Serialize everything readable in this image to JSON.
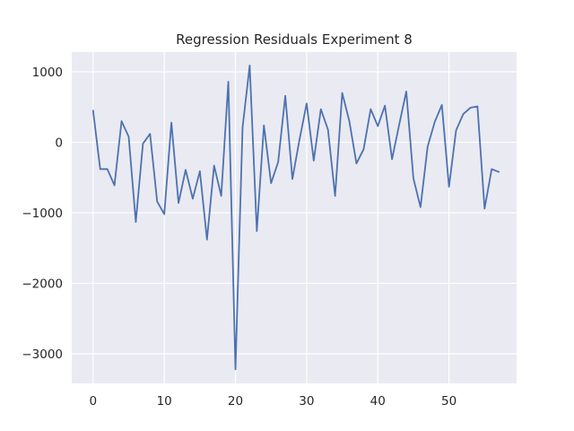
{
  "chart_data": {
    "type": "line",
    "title": "Regression Residuals Experiment 8",
    "xlabel": "",
    "ylabel": "",
    "xlim": [
      -3,
      59.5
    ],
    "ylim": [
      -3420,
      1280
    ],
    "xticks": [
      0,
      10,
      20,
      30,
      40,
      50
    ],
    "yticks": [
      -3000,
      -2000,
      -1000,
      0,
      1000
    ],
    "ytick_labels": [
      "−3000",
      "−2000",
      "−1000",
      "0",
      "1000"
    ],
    "grid": true,
    "background": "#eaeaf2",
    "series": [
      {
        "color": "#4c72b0",
        "x": [
          0,
          1,
          2,
          3,
          4,
          5,
          6,
          7,
          8,
          9,
          10,
          11,
          12,
          13,
          14,
          15,
          16,
          17,
          18,
          19,
          20,
          21,
          22,
          23,
          24,
          25,
          26,
          27,
          28,
          29,
          30,
          31,
          32,
          33,
          34,
          35,
          36,
          37,
          38,
          39,
          40,
          41,
          42,
          43,
          44,
          45,
          46,
          47,
          48,
          49,
          50,
          51,
          52,
          53,
          54,
          55,
          56,
          57
        ],
        "values": [
          450,
          -380,
          -380,
          -610,
          300,
          80,
          -1130,
          -20,
          120,
          -840,
          -1020,
          280,
          -860,
          -390,
          -800,
          -410,
          -1380,
          -330,
          -760,
          860,
          -3220,
          210,
          1090,
          -1260,
          240,
          -580,
          -280,
          660,
          -520,
          40,
          550,
          -260,
          470,
          180,
          -760,
          700,
          300,
          -300,
          -100,
          470,
          230,
          520,
          -240,
          250,
          720,
          -510,
          -920,
          -60,
          290,
          530,
          -630,
          170,
          400,
          490,
          510,
          -940,
          -380,
          -420
        ]
      }
    ]
  }
}
